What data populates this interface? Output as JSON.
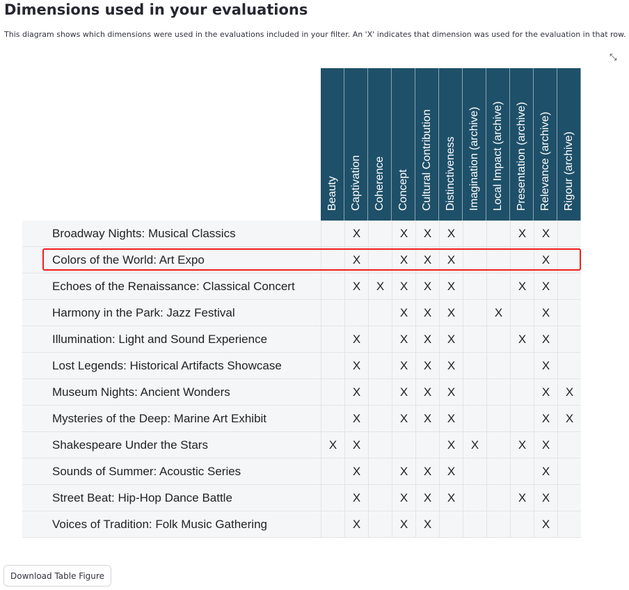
{
  "title": "Dimensions used in your evaluations",
  "description": "This diagram shows which dimensions were used in the evaluations included in your filter. An 'X' indicates that dimension was used for the evaluation in that row.",
  "expand_icon": "expand-arrows-icon",
  "colors": {
    "header_bg": "#1f5069",
    "highlight": "#f01e1e",
    "row_bg": "#f5f6f8"
  },
  "mark": "X",
  "columns": [
    "Beauty",
    "Captivation",
    "Coherence",
    "Concept",
    "Cultural Contribution",
    "Distinctiveness",
    "Imagination (archive)",
    "Local Impact (archive)",
    "Presentation (archive)",
    "Relevance (archive)",
    "Rigour (archive)"
  ],
  "highlighted_row": "Colors of the World: Art Expo",
  "rows": [
    {
      "name": "Broadway Nights: Musical Classics",
      "used": [
        0,
        1,
        0,
        1,
        1,
        1,
        0,
        0,
        1,
        1,
        0
      ]
    },
    {
      "name": "Colors of the World: Art Expo",
      "used": [
        0,
        1,
        0,
        1,
        1,
        1,
        0,
        0,
        0,
        1,
        0
      ]
    },
    {
      "name": "Echoes of the Renaissance: Classical Concert",
      "used": [
        0,
        1,
        1,
        1,
        1,
        1,
        0,
        0,
        1,
        1,
        0
      ]
    },
    {
      "name": "Harmony in the Park: Jazz Festival",
      "used": [
        0,
        0,
        0,
        1,
        1,
        1,
        0,
        1,
        0,
        1,
        0
      ]
    },
    {
      "name": "Illumination: Light and Sound Experience",
      "used": [
        0,
        1,
        0,
        1,
        1,
        1,
        0,
        0,
        1,
        1,
        0
      ]
    },
    {
      "name": "Lost Legends: Historical Artifacts Showcase",
      "used": [
        0,
        1,
        0,
        1,
        1,
        1,
        0,
        0,
        0,
        1,
        0
      ]
    },
    {
      "name": "Museum Nights: Ancient Wonders",
      "used": [
        0,
        1,
        0,
        1,
        1,
        1,
        0,
        0,
        0,
        1,
        1
      ]
    },
    {
      "name": "Mysteries of the Deep: Marine Art Exhibit",
      "used": [
        0,
        1,
        0,
        1,
        1,
        1,
        0,
        0,
        0,
        1,
        1
      ]
    },
    {
      "name": "Shakespeare Under the Stars",
      "used": [
        1,
        1,
        0,
        0,
        0,
        1,
        1,
        0,
        1,
        1,
        0
      ]
    },
    {
      "name": "Sounds of Summer: Acoustic Series",
      "used": [
        0,
        1,
        0,
        1,
        1,
        1,
        0,
        0,
        0,
        1,
        0
      ]
    },
    {
      "name": "Street Beat: Hip-Hop Dance Battle",
      "used": [
        0,
        1,
        0,
        1,
        1,
        1,
        0,
        0,
        1,
        1,
        0
      ]
    },
    {
      "name": "Voices of Tradition: Folk Music Gathering",
      "used": [
        0,
        1,
        0,
        1,
        1,
        0,
        0,
        0,
        0,
        1,
        0
      ]
    }
  ],
  "download_label": "Download Table Figure"
}
